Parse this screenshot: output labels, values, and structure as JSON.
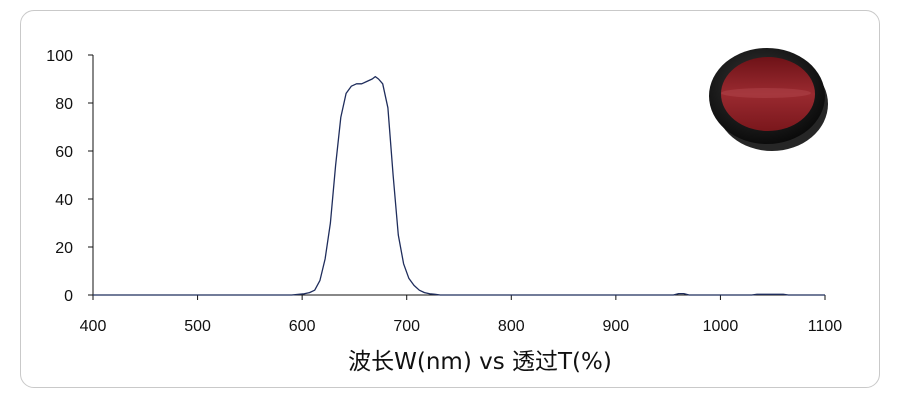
{
  "chart_data": {
    "type": "line",
    "title": "",
    "xlabel": "波长W(nm) vs 透过T(%)",
    "ylabel": "",
    "xlim": [
      400,
      1100
    ],
    "ylim": [
      0,
      100
    ],
    "x_ticks": [
      400,
      500,
      600,
      700,
      800,
      900,
      1000,
      1100
    ],
    "y_ticks": [
      0,
      20,
      40,
      60,
      80,
      100
    ],
    "grid": false,
    "legend": "none",
    "line_color": "#1f2d5c",
    "filter_color": "#8e1d22",
    "series": [
      {
        "x": [
          400,
          590,
          597,
          602,
          607,
          612,
          617,
          622,
          627,
          632,
          637,
          642,
          647,
          652,
          657,
          662,
          667,
          670,
          673,
          677,
          682,
          687,
          692,
          697,
          702,
          707,
          712,
          717,
          722,
          727,
          732,
          740,
          955,
          960,
          965,
          970,
          1030,
          1035,
          1060,
          1065,
          1100
        ],
        "values": [
          0,
          0,
          0.3,
          0.5,
          1,
          2,
          6,
          15,
          30,
          54,
          74,
          84,
          87,
          88,
          88,
          89,
          90,
          91,
          90,
          88,
          78,
          50,
          25,
          13,
          7,
          4,
          2,
          1,
          0.5,
          0.3,
          0,
          0,
          0,
          0.6,
          0.6,
          0,
          0,
          0.3,
          0.3,
          0,
          0
        ]
      }
    ]
  }
}
